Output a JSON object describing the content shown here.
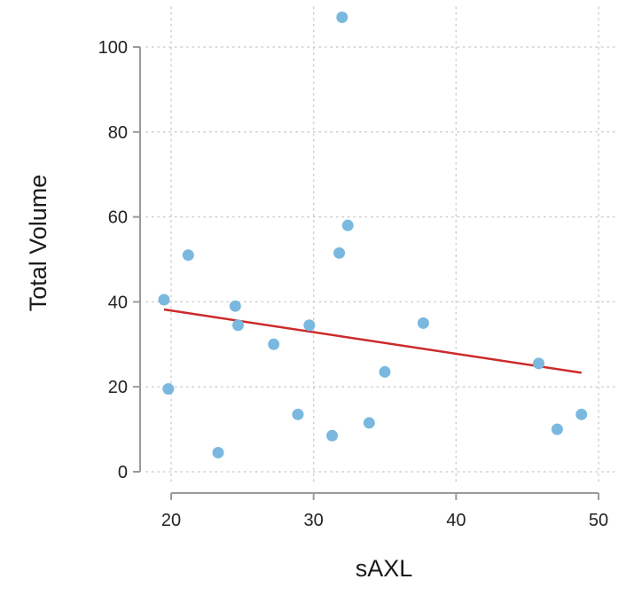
{
  "chart_data": {
    "type": "scatter",
    "title": "",
    "xlabel": "sAXL",
    "ylabel": "Total Volume",
    "xlim": [
      20,
      50
    ],
    "ylim": [
      0,
      100
    ],
    "x_ticks": [
      20,
      30,
      40,
      50
    ],
    "y_ticks": [
      0,
      20,
      40,
      60,
      80,
      100
    ],
    "x_tick_labels": [
      "20",
      "30",
      "40",
      "50"
    ],
    "y_tick_labels": [
      "0",
      "20",
      "40",
      "60",
      "80",
      "100"
    ],
    "grid": true,
    "legend": "none",
    "series": [
      {
        "values": [
          {
            "x": 19.5,
            "y": 40.5
          },
          {
            "x": 19.8,
            "y": 19.5
          },
          {
            "x": 21.2,
            "y": 51.0
          },
          {
            "x": 23.3,
            "y": 4.5
          },
          {
            "x": 24.5,
            "y": 39.0
          },
          {
            "x": 24.7,
            "y": 34.5
          },
          {
            "x": 27.2,
            "y": 30.0
          },
          {
            "x": 28.9,
            "y": 13.5
          },
          {
            "x": 29.7,
            "y": 34.5
          },
          {
            "x": 31.3,
            "y": 8.5
          },
          {
            "x": 31.8,
            "y": 51.5
          },
          {
            "x": 32.0,
            "y": 107.0
          },
          {
            "x": 32.4,
            "y": 58.0
          },
          {
            "x": 33.9,
            "y": 11.5
          },
          {
            "x": 35.0,
            "y": 23.5
          },
          {
            "x": 37.7,
            "y": 35.0
          },
          {
            "x": 45.8,
            "y": 25.5
          },
          {
            "x": 47.1,
            "y": 10.0
          },
          {
            "x": 48.8,
            "y": 13.5
          }
        ]
      }
    ],
    "trendline": {
      "x": [
        19.5,
        48.8
      ],
      "y": [
        38.2,
        23.3
      ]
    },
    "colors": {
      "points": "#7ab8e0",
      "trendline": "#cc2a2a",
      "grid": "#cfcfcf",
      "axis": "#9a9a9a"
    }
  }
}
